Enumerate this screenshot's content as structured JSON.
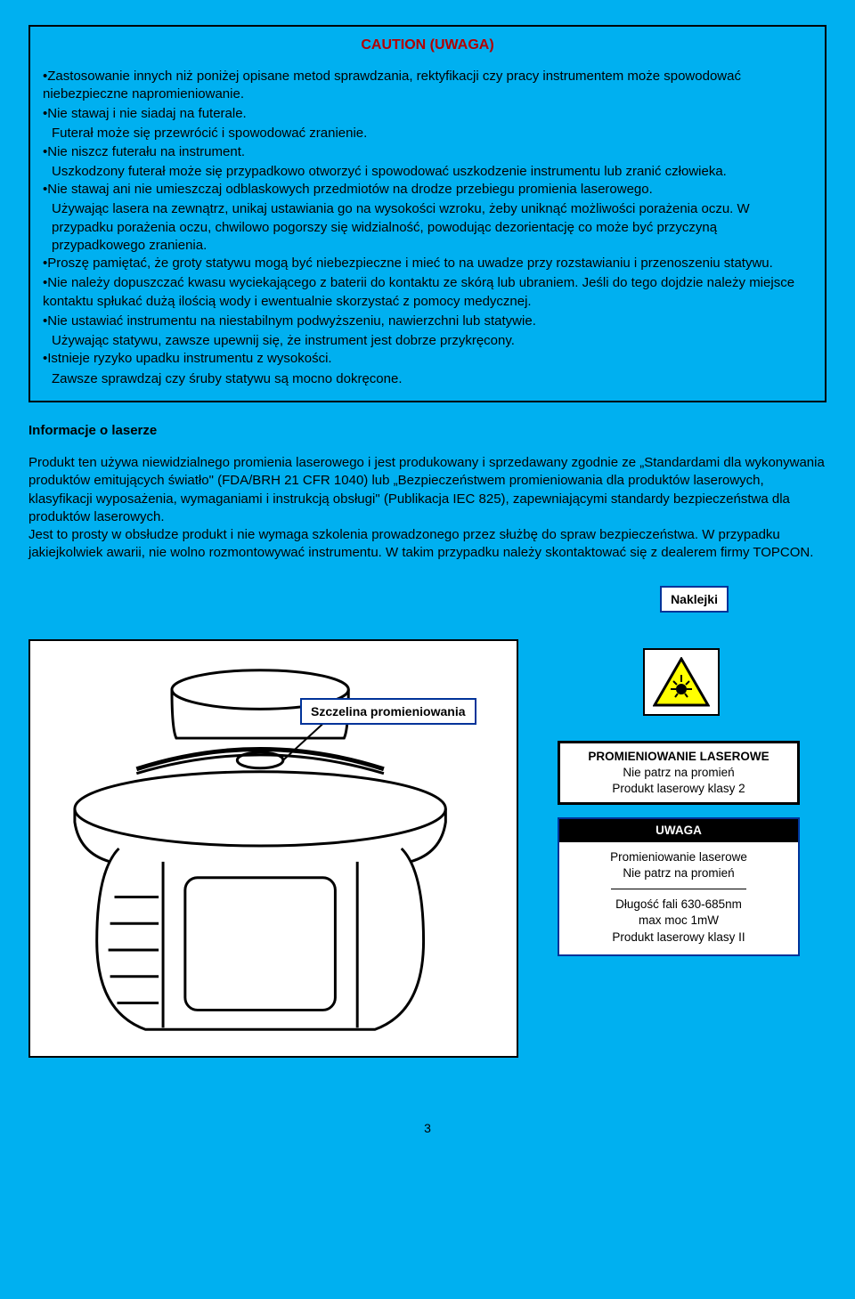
{
  "caution": {
    "title": "CAUTION (UWAGA)",
    "items": [
      {
        "t": "Zastosowanie innych niż poniżej opisane metod sprawdzania, rektyfikacji czy pracy instrumentem może spowodować niebezpieczne napromieniowanie."
      },
      {
        "t": "Nie stawaj i nie siadaj na futerale."
      },
      {
        "t": "Futerał może się przewrócić i spowodować zranienie.",
        "sub": true,
        "nobullet": true
      },
      {
        "t": "Nie niszcz futerału na instrument."
      },
      {
        "t": "Uszkodzony futerał może się przypadkowo otworzyć i spowodować uszkodzenie instrumentu lub zranić człowieka.",
        "sub": true,
        "nobullet": true
      },
      {
        "t": "Nie stawaj ani nie umieszczaj odblaskowych przedmiotów na drodze przebiegu promienia laserowego."
      },
      {
        "t": "Używając lasera na zewnątrz, unikaj ustawiania go na wysokości wzroku, żeby uniknąć możliwości porażenia  oczu. W przypadku porażenia oczu, chwilowo pogorszy się widzialność, powodując dezorientację co może być przyczyną przypadkowego zranienia.",
        "sub": true,
        "nobullet": true
      },
      {
        "t": "Proszę pamiętać, że groty statywu mogą być niebezpieczne i mieć to na uwadze przy rozstawianiu i przenoszeniu statywu."
      },
      {
        "t": "Nie należy dopuszczać kwasu wyciekającego z baterii do kontaktu ze skórą lub ubraniem. Jeśli do tego dojdzie należy miejsce kontaktu spłukać dużą ilością wody i ewentualnie skorzystać z pomocy medycznej."
      },
      {
        "t": "Nie ustawiać instrumentu na niestabilnym podwyższeniu, nawierzchni lub statywie."
      },
      {
        "t": "Używając statywu, zawsze upewnij się, że instrument jest dobrze przykręcony.",
        "sub": true,
        "nobullet": true
      },
      {
        "t": "Istnieje ryzyko upadku instrumentu z wysokości."
      },
      {
        "t": "Zawsze sprawdzaj czy śruby statywu są mocno dokręcone.",
        "sub": true,
        "nobullet": true
      }
    ]
  },
  "info": {
    "heading": "Informacje o laserze",
    "body": "Produkt ten używa niewidzialnego promienia laserowego i jest produkowany i sprzedawany zgodnie ze „Standardami dla wykonywania produktów emitujących światło\" (FDA/BRH 21 CFR 1040) lub „Bezpieczeństwem promieniowania dla produktów laserowych, klasyfikacji wyposażenia, wymaganiami i instrukcją obsługi\" (Publikacja IEC 825), zapewniającymi standardy  bezpieczeństwa dla produktów laserowych.\nJest to prosty w obsłudze produkt i nie wymaga szkolenia prowadzonego przez służbę do spraw bezpieczeństwa. W przypadku jakiejkolwiek  awarii, nie wolno rozmontowywać instrumentu. W takim przypadku należy skontaktować się z dealerem firmy TOPCON."
  },
  "labels": {
    "naklejki": "Naklejki",
    "szczelina": "Szczelina promieniowania",
    "box1": {
      "l1": "PROMIENIOWANIE LASEROWE",
      "l2": "Nie patrz na promień",
      "l3": "Produkt laserowy klasy 2"
    },
    "box2": {
      "hdr": "UWAGA",
      "l1": "Promieniowanie laserowe",
      "l2": "Nie patrz na promień",
      "l3": "Długość fali 630-685nm",
      "l4": "max moc 1mW",
      "l5": "Produkt laserowy klasy II"
    }
  },
  "page": "3",
  "colors": {
    "bg": "#00b0f0",
    "title": "#b30000",
    "border_blue": "#003399",
    "triangle": "#ffff00"
  }
}
